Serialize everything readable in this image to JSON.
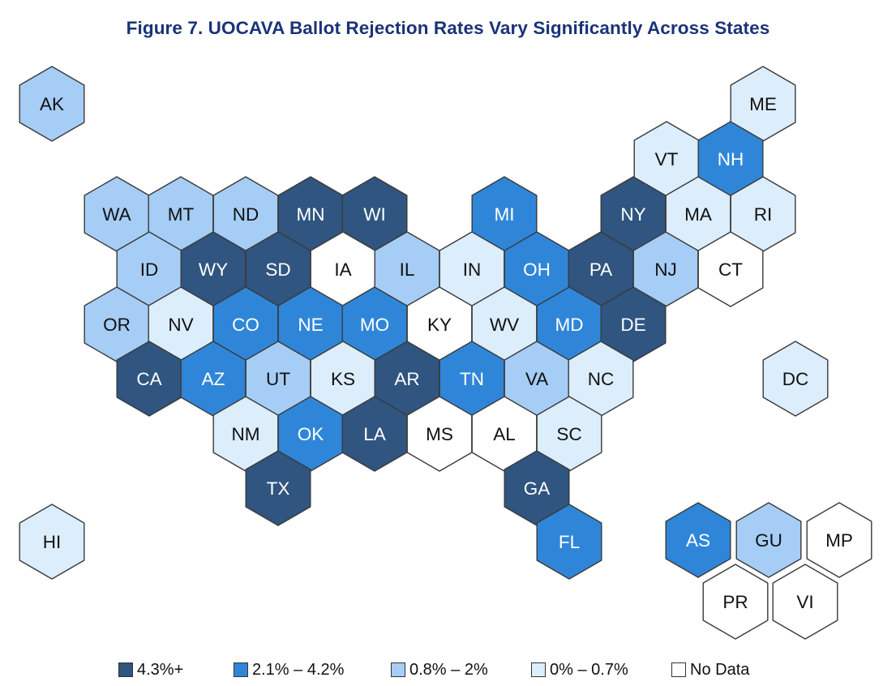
{
  "title": "Figure 7. UOCAVA Ballot Rejection Rates Vary Significantly Across States",
  "colors": {
    "c1": "#2f5580",
    "c2": "#2f86d9",
    "c3": "#a5cdf6",
    "c4": "#dcedfc",
    "c5": "#ffffff",
    "stroke": "#3a3a3a",
    "title": "#1a3378"
  },
  "legend": [
    {
      "category": "c1",
      "label": "4.3%+"
    },
    {
      "category": "c2",
      "label": "2.1% – 4.2%"
    },
    {
      "category": "c3",
      "label": "0.8% – 2%"
    },
    {
      "category": "c4",
      "label": "0% – 0.7%"
    },
    {
      "category": "c5",
      "label": "No Data"
    }
  ],
  "chart_data": {
    "type": "hexagon-tile-map",
    "title": "Figure 7. UOCAVA Ballot Rejection Rates Vary Significantly Across States",
    "legend_placement": "bottom",
    "regions": [
      {
        "abbr": "AK",
        "category": "c3"
      },
      {
        "abbr": "ME",
        "category": "c4"
      },
      {
        "abbr": "VT",
        "category": "c4"
      },
      {
        "abbr": "NH",
        "category": "c2"
      },
      {
        "abbr": "WA",
        "category": "c3"
      },
      {
        "abbr": "MT",
        "category": "c3"
      },
      {
        "abbr": "ND",
        "category": "c3"
      },
      {
        "abbr": "MN",
        "category": "c1"
      },
      {
        "abbr": "WI",
        "category": "c1"
      },
      {
        "abbr": "MI",
        "category": "c2"
      },
      {
        "abbr": "NY",
        "category": "c1"
      },
      {
        "abbr": "MA",
        "category": "c4"
      },
      {
        "abbr": "RI",
        "category": "c4"
      },
      {
        "abbr": "ID",
        "category": "c3"
      },
      {
        "abbr": "WY",
        "category": "c1"
      },
      {
        "abbr": "SD",
        "category": "c1"
      },
      {
        "abbr": "IA",
        "category": "c5"
      },
      {
        "abbr": "IL",
        "category": "c3"
      },
      {
        "abbr": "IN",
        "category": "c4"
      },
      {
        "abbr": "OH",
        "category": "c2"
      },
      {
        "abbr": "PA",
        "category": "c1"
      },
      {
        "abbr": "NJ",
        "category": "c3"
      },
      {
        "abbr": "CT",
        "category": "c5"
      },
      {
        "abbr": "OR",
        "category": "c3"
      },
      {
        "abbr": "NV",
        "category": "c4"
      },
      {
        "abbr": "CO",
        "category": "c2"
      },
      {
        "abbr": "NE",
        "category": "c2"
      },
      {
        "abbr": "MO",
        "category": "c2"
      },
      {
        "abbr": "KY",
        "category": "c5"
      },
      {
        "abbr": "WV",
        "category": "c4"
      },
      {
        "abbr": "MD",
        "category": "c2"
      },
      {
        "abbr": "DE",
        "category": "c1"
      },
      {
        "abbr": "CA",
        "category": "c1"
      },
      {
        "abbr": "AZ",
        "category": "c2"
      },
      {
        "abbr": "UT",
        "category": "c3"
      },
      {
        "abbr": "KS",
        "category": "c4"
      },
      {
        "abbr": "AR",
        "category": "c1"
      },
      {
        "abbr": "TN",
        "category": "c2"
      },
      {
        "abbr": "VA",
        "category": "c3"
      },
      {
        "abbr": "NC",
        "category": "c4"
      },
      {
        "abbr": "DC",
        "category": "c4"
      },
      {
        "abbr": "NM",
        "category": "c4"
      },
      {
        "abbr": "OK",
        "category": "c2"
      },
      {
        "abbr": "LA",
        "category": "c1"
      },
      {
        "abbr": "MS",
        "category": "c5"
      },
      {
        "abbr": "AL",
        "category": "c5"
      },
      {
        "abbr": "SC",
        "category": "c4"
      },
      {
        "abbr": "TX",
        "category": "c1"
      },
      {
        "abbr": "GA",
        "category": "c1"
      },
      {
        "abbr": "HI",
        "category": "c4"
      },
      {
        "abbr": "FL",
        "category": "c2"
      },
      {
        "abbr": "AS",
        "category": "c2"
      },
      {
        "abbr": "GU",
        "category": "c3"
      },
      {
        "abbr": "MP",
        "category": "c5"
      },
      {
        "abbr": "PR",
        "category": "c5"
      },
      {
        "abbr": "VI",
        "category": "c5"
      }
    ]
  }
}
